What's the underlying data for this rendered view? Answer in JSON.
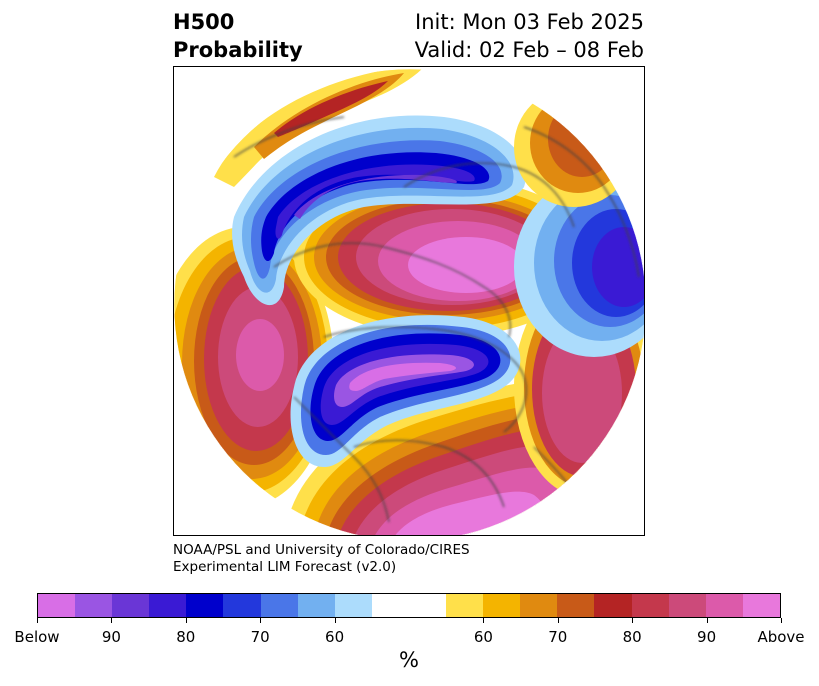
{
  "title": {
    "left_line1": "H500",
    "left_line2": "Probability",
    "right_line1": "Init: Mon 03 Feb 2025",
    "right_line2": "Valid: 02 Feb – 08 Feb"
  },
  "credit": {
    "line1": "NOAA/PSL and University of Colorado/CIRES",
    "line2": "Experimental LIM Forecast (v2.0)"
  },
  "colorbar": {
    "colors": [
      "#d86ee6",
      "#9a55e3",
      "#6a36d6",
      "#3a1ad4",
      "#0000cc",
      "#2338dc",
      "#4a76e8",
      "#72b0f0",
      "#acdcfc",
      "#ffffff",
      "#ffffff",
      "#ffe04a",
      "#f4b400",
      "#e08a10",
      "#c85a18",
      "#b42424",
      "#c4384c",
      "#cc4a7a",
      "#dc5aaa",
      "#e878dc"
    ],
    "tick_labels": [
      "Below",
      "90",
      "80",
      "70",
      "60",
      "60",
      "70",
      "80",
      "90",
      "Above"
    ],
    "units": "%"
  }
}
